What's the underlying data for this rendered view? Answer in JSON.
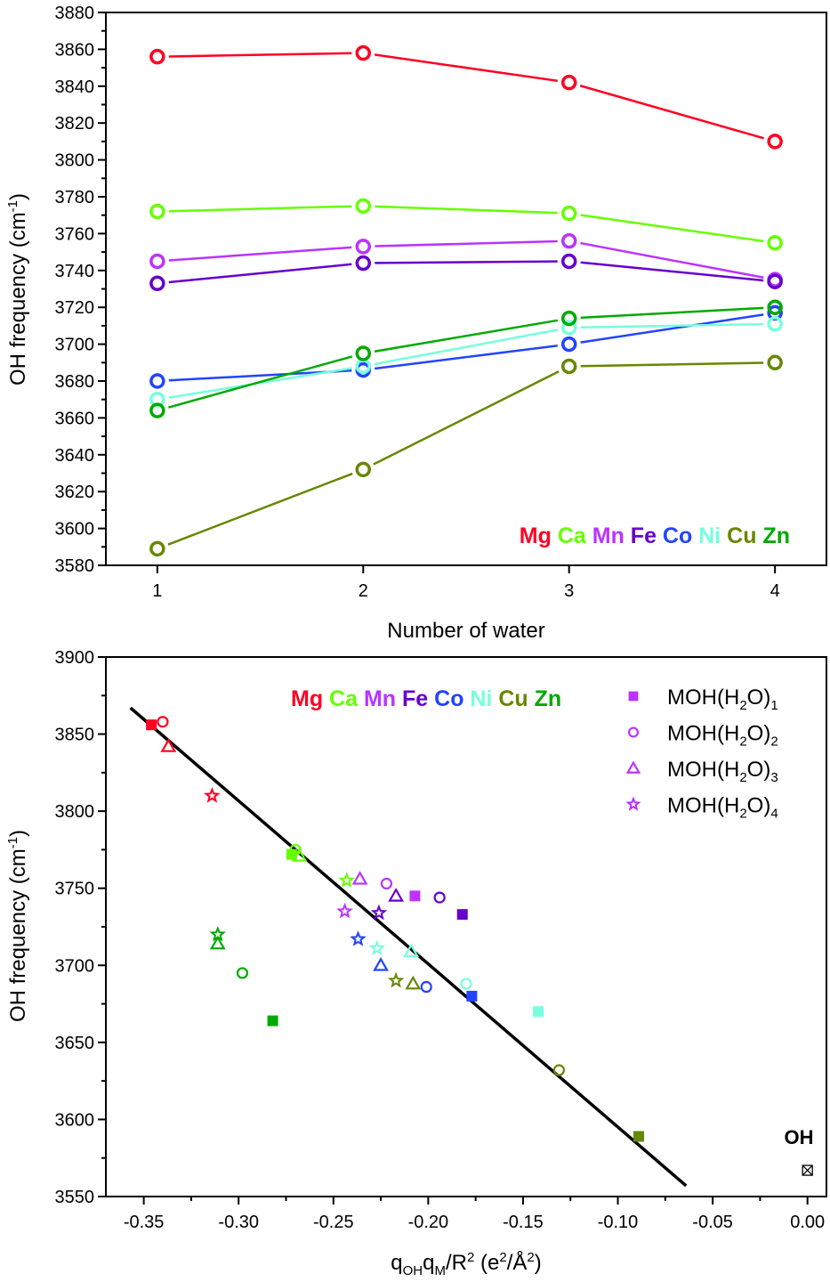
{
  "colors": {
    "Mg": "#ff0022",
    "Ca": "#66ff00",
    "Mn": "#bb33ff",
    "Fe": "#6600cc",
    "Co": "#2244ff",
    "Ni": "#77ffdd",
    "Cu": "#668800",
    "Zn": "#00aa00",
    "axis": "#000000",
    "fit_line": "#000000"
  },
  "chart_data": [
    {
      "type": "line",
      "title": "",
      "xlabel": "Number of water",
      "ylabel": "OH frequency (cm⁻¹)",
      "ylabel_main": "OH frequency (cm",
      "ylabel_sup": "-1",
      "ylabel_close": ")",
      "xlim": [
        0.75,
        4.25
      ],
      "ylim": [
        3580,
        3880
      ],
      "x": [
        1,
        2,
        3,
        4
      ],
      "xticks": [
        1,
        2,
        3,
        4
      ],
      "yticks": [
        3580,
        3600,
        3620,
        3640,
        3660,
        3680,
        3700,
        3720,
        3740,
        3760,
        3780,
        3800,
        3820,
        3840,
        3860,
        3880
      ],
      "marker": "open-circle",
      "legend": {
        "placement": "bottom-right",
        "entries": [
          "Mg",
          "Ca",
          "Mn",
          "Fe",
          "Co",
          "Ni",
          "Cu",
          "Zn"
        ]
      },
      "series": [
        {
          "name": "Mg",
          "values": [
            3856,
            3858,
            3842,
            3810
          ]
        },
        {
          "name": "Ca",
          "values": [
            3772,
            3775,
            3771,
            3755
          ]
        },
        {
          "name": "Mn",
          "values": [
            3745,
            3753,
            3756,
            3735
          ]
        },
        {
          "name": "Fe",
          "values": [
            3733,
            3744,
            3745,
            3734
          ]
        },
        {
          "name": "Co",
          "values": [
            3680,
            3686,
            3700,
            3717
          ]
        },
        {
          "name": "Ni",
          "values": [
            3670,
            3688,
            3709,
            3711
          ]
        },
        {
          "name": "Cu",
          "values": [
            3589,
            3632,
            3688,
            3690
          ]
        },
        {
          "name": "Zn",
          "values": [
            3664,
            3695,
            3714,
            3720
          ]
        }
      ]
    },
    {
      "type": "scatter",
      "title": "",
      "xlabel": "q_OH q_M / R^2 (e^2/Å^2)",
      "ylabel": "OH frequency (cm⁻¹)",
      "ylabel_main": "OH frequency (cm",
      "ylabel_sup": "-1",
      "ylabel_close": ")",
      "xlim": [
        -0.37,
        0.01
      ],
      "ylim": [
        3550,
        3900
      ],
      "xticks": [
        -0.35,
        -0.3,
        -0.25,
        -0.2,
        -0.15,
        -0.1,
        -0.05,
        0.0
      ],
      "xtick_labels": [
        "-0.35",
        "-0.30",
        "-0.25",
        "-0.20",
        "-0.15",
        "-0.10",
        "-0.05",
        "0.00"
      ],
      "yticks": [
        3550,
        3600,
        3650,
        3700,
        3750,
        3800,
        3850,
        3900
      ],
      "element_labels": [
        "Mg",
        "Ca",
        "Mn",
        "Fe",
        "Co",
        "Ni",
        "Cu",
        "Zn"
      ],
      "legend": {
        "placement": "top-right",
        "entries": [
          {
            "marker": "filled-square",
            "base": "MOH(H",
            "sub1": "2",
            "mid": "O)",
            "sub2": "1"
          },
          {
            "marker": "open-circle",
            "base": "MOH(H",
            "sub1": "2",
            "mid": "O)",
            "sub2": "2"
          },
          {
            "marker": "open-triangle",
            "base": "MOH(H",
            "sub1": "2",
            "mid": "O)",
            "sub2": "3"
          },
          {
            "marker": "open-star",
            "base": "MOH(H",
            "sub1": "2",
            "mid": "O)",
            "sub2": "4"
          }
        ]
      },
      "fit_line": {
        "x": [
          -0.357,
          -0.064
        ],
        "y": [
          3867,
          3557
        ]
      },
      "annotation": {
        "text": "OH",
        "point": {
          "x": 0.0,
          "y": 3567,
          "marker": "crossed-square"
        }
      },
      "points": [
        {
          "metal": "Mg",
          "n": 1,
          "x": -0.346,
          "y": 3856
        },
        {
          "metal": "Mg",
          "n": 2,
          "x": -0.34,
          "y": 3858
        },
        {
          "metal": "Mg",
          "n": 3,
          "x": -0.337,
          "y": 3842
        },
        {
          "metal": "Mg",
          "n": 4,
          "x": -0.314,
          "y": 3810
        },
        {
          "metal": "Ca",
          "n": 1,
          "x": -0.272,
          "y": 3772
        },
        {
          "metal": "Ca",
          "n": 2,
          "x": -0.27,
          "y": 3775
        },
        {
          "metal": "Ca",
          "n": 3,
          "x": -0.268,
          "y": 3771
        },
        {
          "metal": "Ca",
          "n": 4,
          "x": -0.243,
          "y": 3755
        },
        {
          "metal": "Mn",
          "n": 1,
          "x": -0.207,
          "y": 3745
        },
        {
          "metal": "Mn",
          "n": 2,
          "x": -0.222,
          "y": 3753
        },
        {
          "metal": "Mn",
          "n": 3,
          "x": -0.236,
          "y": 3756
        },
        {
          "metal": "Mn",
          "n": 4,
          "x": -0.244,
          "y": 3735
        },
        {
          "metal": "Fe",
          "n": 1,
          "x": -0.182,
          "y": 3733
        },
        {
          "metal": "Fe",
          "n": 2,
          "x": -0.194,
          "y": 3744
        },
        {
          "metal": "Fe",
          "n": 3,
          "x": -0.217,
          "y": 3745
        },
        {
          "metal": "Fe",
          "n": 4,
          "x": -0.226,
          "y": 3734
        },
        {
          "metal": "Co",
          "n": 1,
          "x": -0.177,
          "y": 3680
        },
        {
          "metal": "Co",
          "n": 2,
          "x": -0.201,
          "y": 3686
        },
        {
          "metal": "Co",
          "n": 3,
          "x": -0.225,
          "y": 3700
        },
        {
          "metal": "Co",
          "n": 4,
          "x": -0.237,
          "y": 3717
        },
        {
          "metal": "Ni",
          "n": 1,
          "x": -0.142,
          "y": 3670
        },
        {
          "metal": "Ni",
          "n": 2,
          "x": -0.18,
          "y": 3688
        },
        {
          "metal": "Ni",
          "n": 3,
          "x": -0.209,
          "y": 3709
        },
        {
          "metal": "Ni",
          "n": 4,
          "x": -0.227,
          "y": 3711
        },
        {
          "metal": "Cu",
          "n": 1,
          "x": -0.089,
          "y": 3589
        },
        {
          "metal": "Cu",
          "n": 2,
          "x": -0.131,
          "y": 3632
        },
        {
          "metal": "Cu",
          "n": 3,
          "x": -0.208,
          "y": 3688
        },
        {
          "metal": "Cu",
          "n": 4,
          "x": -0.217,
          "y": 3690
        },
        {
          "metal": "Zn",
          "n": 1,
          "x": -0.282,
          "y": 3664
        },
        {
          "metal": "Zn",
          "n": 2,
          "x": -0.298,
          "y": 3695
        },
        {
          "metal": "Zn",
          "n": 3,
          "x": -0.311,
          "y": 3714
        },
        {
          "metal": "Zn",
          "n": 4,
          "x": -0.311,
          "y": 3720
        }
      ]
    }
  ],
  "labels": {
    "top_xlabel": "Number of water",
    "bottom_xlabel_q": "q",
    "bottom_xlabel_sub_oh": "OH",
    "bottom_xlabel_sub_m": "M",
    "bottom_xlabel_r": "/R",
    "bottom_xlabel_sup2": "2",
    "bottom_xlabel_unit_open": " (e",
    "bottom_xlabel_unit_mid": "/Å",
    "bottom_xlabel_unit_close": ")",
    "oh": "OH"
  }
}
